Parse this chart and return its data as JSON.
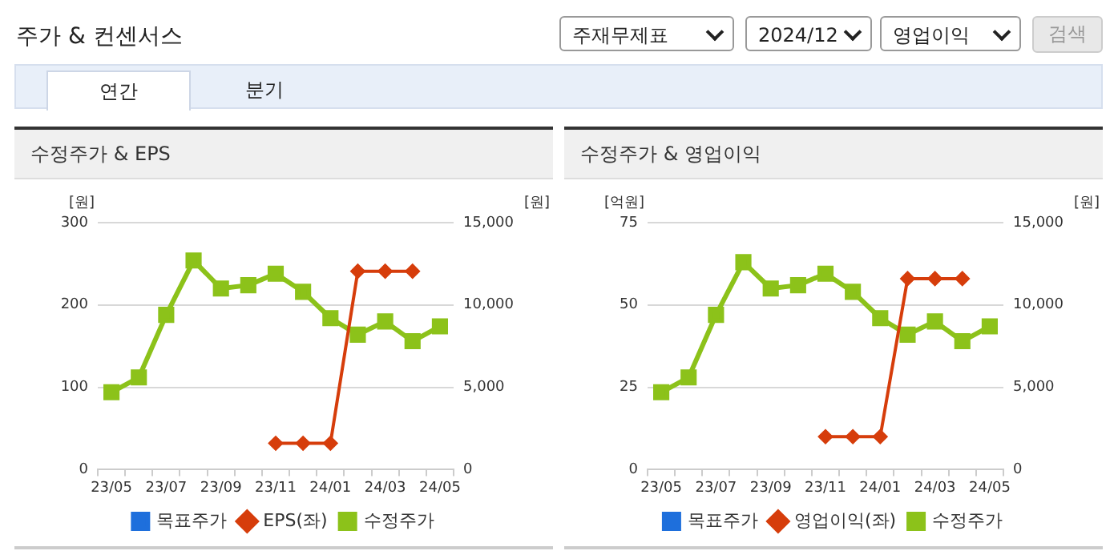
{
  "chart_data": [
    {
      "type": "other",
      "title": "주가 & 컨센서스",
      "annotations": [
        "주재무제표",
        "2024/12",
        "영업이익",
        "검색",
        "연간",
        "분기"
      ]
    },
    {
      "type": "line",
      "title": "수정주가 & EPS",
      "ylabel": "[원]",
      "y2label": "[원]",
      "categories": [
        "23/05",
        null,
        "23/07",
        null,
        "23/09",
        null,
        "23/11",
        null,
        "24/01",
        null,
        "24/03",
        null,
        "24/05"
      ],
      "ylim": [
        0,
        300
      ],
      "yticks": [
        0,
        100,
        200,
        300
      ],
      "y2lim": [
        0,
        15000
      ],
      "y2ticks": [
        0,
        {
          "value": 5000,
          "label": "5,000"
        },
        {
          "value": 10000,
          "label": "10,000"
        },
        {
          "value": 15000,
          "label": "15,000"
        }
      ],
      "grid": "y",
      "legend": "bottom",
      "series": [
        {
          "name": "목표주가",
          "color": "#1e6fdc",
          "marker": "square",
          "values": [
            null,
            null,
            null,
            null,
            null,
            null,
            null,
            null,
            null,
            null,
            null,
            null,
            null
          ]
        },
        {
          "name": "EPS(좌)",
          "color": "#d63d0b",
          "marker": "diamond",
          "values": [
            null,
            null,
            null,
            null,
            null,
            null,
            32,
            32,
            32,
            241,
            241,
            241,
            null
          ]
        },
        {
          "name": "수정주가",
          "color": "#8cc21a",
          "marker": "square",
          "axis": "y2",
          "values": [
            4700,
            5600,
            9400,
            12700,
            11000,
            11200,
            11900,
            10800,
            9200,
            8200,
            9000,
            7800,
            8700
          ]
        }
      ]
    },
    {
      "type": "line",
      "title": "수정주가 & 영업이익",
      "ylabel": "[억원]",
      "y2label": "[원]",
      "categories": [
        "23/05",
        null,
        "23/07",
        null,
        "23/09",
        null,
        "23/11",
        null,
        "24/01",
        null,
        "24/03",
        null,
        "24/05"
      ],
      "ylim": [
        0,
        75
      ],
      "yticks": [
        0,
        25,
        50,
        75
      ],
      "y2lim": [
        0,
        15000
      ],
      "y2ticks": [
        0,
        {
          "value": 5000,
          "label": "5,000"
        },
        {
          "value": 10000,
          "label": "10,000"
        },
        {
          "value": 15000,
          "label": "15,000"
        }
      ],
      "grid": "y",
      "legend": "bottom",
      "series": [
        {
          "name": "목표주가",
          "color": "#1e6fdc",
          "marker": "square",
          "values": [
            null,
            null,
            null,
            null,
            null,
            null,
            null,
            null,
            null,
            null,
            null,
            null,
            null
          ]
        },
        {
          "name": "영업이익(좌)",
          "color": "#d63d0b",
          "marker": "diamond",
          "values": [
            null,
            null,
            null,
            null,
            null,
            null,
            10,
            10,
            10,
            58,
            58,
            58,
            null
          ]
        },
        {
          "name": "수정주가",
          "color": "#8cc21a",
          "marker": "square",
          "axis": "y2",
          "values": [
            4700,
            5600,
            9400,
            12600,
            11000,
            11200,
            11900,
            10800,
            9200,
            8200,
            9000,
            7800,
            8700
          ]
        }
      ]
    }
  ]
}
